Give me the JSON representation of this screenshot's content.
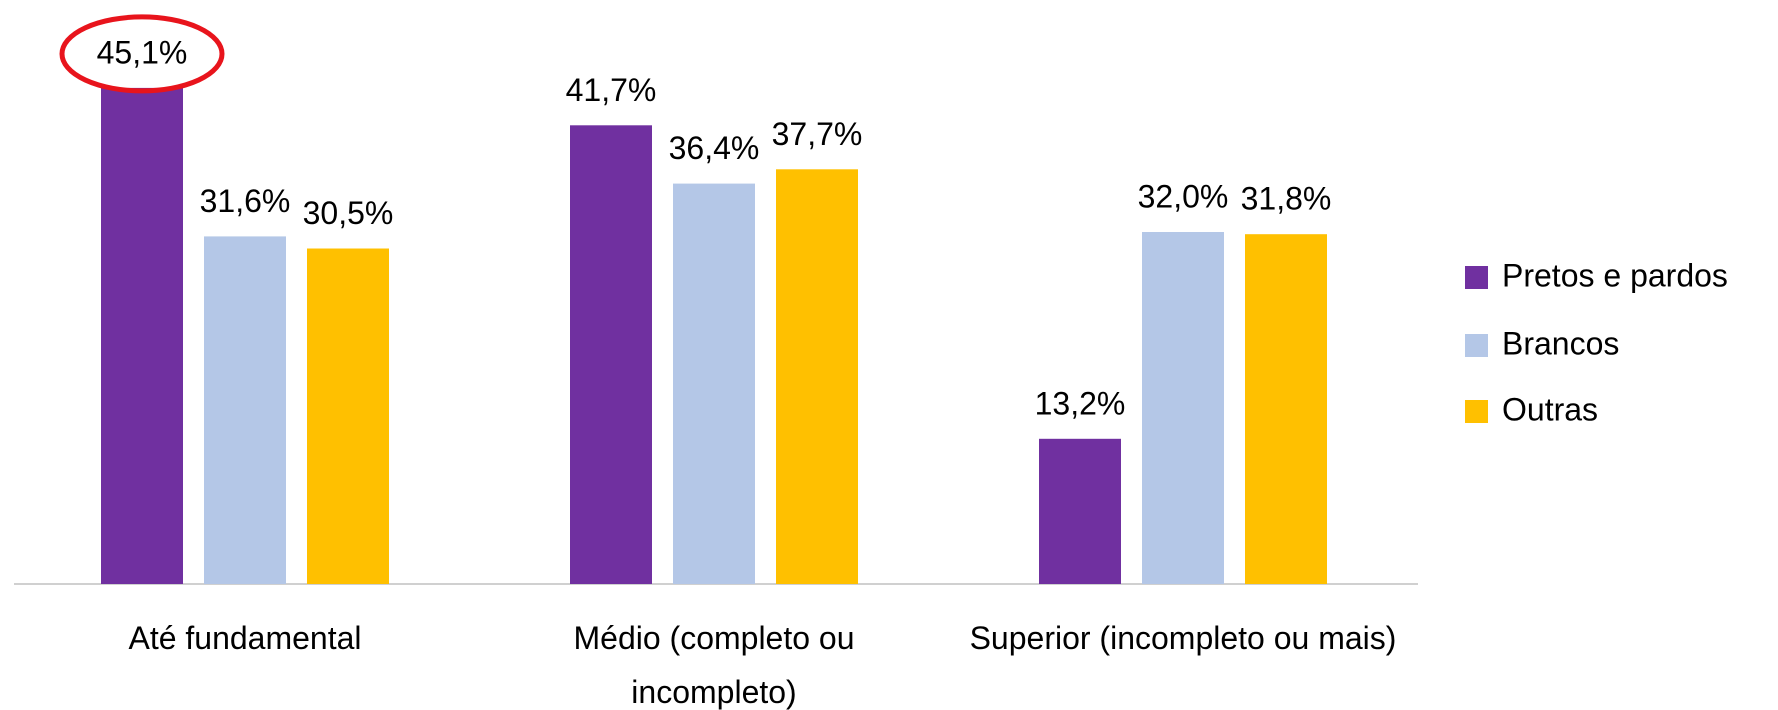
{
  "chart_data": {
    "type": "bar",
    "categories": [
      "Até fundamental",
      "Médio (completo ou incompleto)",
      "Superior (incompleto ou mais)"
    ],
    "series": [
      {
        "name": "Pretos e pardos",
        "color": "#7030a0",
        "values": [
          45.1,
          41.7,
          13.2
        ],
        "value_labels": [
          "45,1%",
          "41,7%",
          "13,2%"
        ]
      },
      {
        "name": "Brancos",
        "color": "#b4c7e7",
        "values": [
          31.6,
          36.4,
          32.0
        ],
        "value_labels": [
          "31,6%",
          "36,4%",
          "32,0%"
        ]
      },
      {
        "name": "Outras",
        "color": "#ffc000",
        "values": [
          30.5,
          37.7,
          31.8
        ],
        "value_labels": [
          "30,5%",
          "37,7%",
          "31,8%"
        ]
      }
    ],
    "legend": "right"
  }
}
